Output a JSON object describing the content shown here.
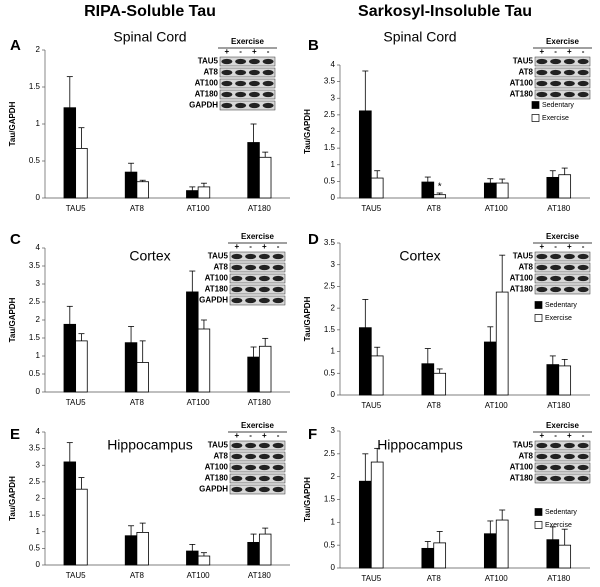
{
  "columns": [
    "RIPA-Soluble Tau",
    "Sarkosyl-Insoluble Tau"
  ],
  "chart_data": [
    {
      "type": "bar",
      "panel": "A",
      "title": "Spinal Cord",
      "ylabel": "Tau/GAPDH",
      "categories": [
        "TAU5",
        "AT8",
        "AT100",
        "AT180"
      ],
      "series": [
        {
          "color": "#000000",
          "values": [
            1.22,
            0.35,
            0.1,
            0.75
          ],
          "errors": [
            0.42,
            0.12,
            0.05,
            0.25
          ]
        },
        {
          "color": "#ffffff",
          "values": [
            0.67,
            0.22,
            0.15,
            0.55
          ],
          "errors": [
            0.28,
            0.02,
            0.05,
            0.07
          ]
        }
      ],
      "ylim": [
        0,
        2
      ],
      "yticks": [
        0,
        0.5,
        1,
        1.5,
        2
      ],
      "inset": {
        "header": "Exercise",
        "lanes": [
          "+",
          "-",
          "+",
          "-"
        ],
        "rows": [
          "TAU5",
          "AT8",
          "AT100",
          "AT180",
          "GAPDH"
        ]
      }
    },
    {
      "type": "bar",
      "panel": "B",
      "title": "Spinal Cord",
      "ylabel": "Tau/GAPDH",
      "categories": [
        "TAU5",
        "AT8",
        "AT100",
        "AT180"
      ],
      "series": [
        {
          "name": "Sedentary",
          "color": "#000000",
          "values": [
            2.62,
            0.48,
            0.45,
            0.62
          ],
          "errors": [
            1.2,
            0.15,
            0.13,
            0.2
          ]
        },
        {
          "name": "Exercise",
          "color": "#ffffff",
          "values": [
            0.6,
            0.1,
            0.45,
            0.7
          ],
          "errors": [
            0.22,
            0.05,
            0.12,
            0.2
          ]
        }
      ],
      "ylim": [
        0,
        4
      ],
      "yticks": [
        0,
        0.5,
        1,
        1.5,
        2,
        2.5,
        3,
        3.5,
        4
      ],
      "annotation": "*",
      "inset": {
        "header": "Exercise",
        "lanes": [
          "+",
          "-",
          "+",
          "-"
        ],
        "rows": [
          "TAU5",
          "AT8",
          "AT100",
          "AT180"
        ]
      }
    },
    {
      "type": "bar",
      "panel": "C",
      "title": "Cortex",
      "ylabel": "Tau/GAPDH",
      "categories": [
        "TAU5",
        "AT8",
        "AT100",
        "AT180"
      ],
      "series": [
        {
          "color": "#000000",
          "values": [
            1.88,
            1.37,
            2.78,
            0.97
          ],
          "errors": [
            0.5,
            0.45,
            0.58,
            0.28
          ]
        },
        {
          "color": "#ffffff",
          "values": [
            1.42,
            0.82,
            1.75,
            1.27
          ],
          "errors": [
            0.2,
            0.6,
            0.25,
            0.22
          ]
        }
      ],
      "ylim": [
        0,
        4
      ],
      "yticks": [
        0,
        0.5,
        1,
        1.5,
        2,
        2.5,
        3,
        3.5,
        4
      ],
      "inset": {
        "header": "Exercise",
        "lanes": [
          "+",
          "-",
          "+",
          "-"
        ],
        "rows": [
          "TAU5",
          "AT8",
          "AT100",
          "AT180",
          "GAPDH"
        ]
      }
    },
    {
      "type": "bar",
      "panel": "D",
      "title": "Cortex",
      "ylabel": "Tau/GAPDH",
      "categories": [
        "TAU5",
        "AT8",
        "AT100",
        "AT180"
      ],
      "series": [
        {
          "name": "Sedentary",
          "color": "#000000",
          "values": [
            1.55,
            0.72,
            1.22,
            0.7
          ],
          "errors": [
            0.65,
            0.35,
            0.35,
            0.2
          ]
        },
        {
          "name": "Exercise",
          "color": "#ffffff",
          "values": [
            0.9,
            0.5,
            2.37,
            0.67
          ],
          "errors": [
            0.2,
            0.1,
            0.85,
            0.15
          ]
        }
      ],
      "ylim": [
        0,
        3.5
      ],
      "yticks": [
        0,
        0.5,
        1,
        1.5,
        2,
        2.5,
        3,
        3.5
      ],
      "inset": {
        "header": "Exercise",
        "lanes": [
          "+",
          "-",
          "+",
          "-"
        ],
        "rows": [
          "TAU5",
          "AT8",
          "AT100",
          "AT180"
        ]
      }
    },
    {
      "type": "bar",
      "panel": "E",
      "title": "Hippocampus",
      "ylabel": "Tau/GAPDH",
      "categories": [
        "TAU5",
        "AT8",
        "AT100",
        "AT180"
      ],
      "series": [
        {
          "color": "#000000",
          "values": [
            3.1,
            0.88,
            0.42,
            0.68
          ],
          "errors": [
            0.58,
            0.3,
            0.2,
            0.25
          ]
        },
        {
          "color": "#ffffff",
          "values": [
            2.28,
            0.98,
            0.27,
            0.93
          ],
          "errors": [
            0.35,
            0.28,
            0.1,
            0.18
          ]
        }
      ],
      "ylim": [
        0,
        4
      ],
      "yticks": [
        0,
        0.5,
        1,
        1.5,
        2,
        2.5,
        3,
        3.5,
        4
      ],
      "inset": {
        "header": "Exercise",
        "lanes": [
          "+",
          "-",
          "+",
          "-"
        ],
        "rows": [
          "TAU5",
          "AT8",
          "AT100",
          "AT180",
          "GAPDH"
        ]
      }
    },
    {
      "type": "bar",
      "panel": "F",
      "title": "Hippocampus",
      "ylabel": "Tau/GAPDH",
      "categories": [
        "TAU5",
        "AT8",
        "AT100",
        "AT180"
      ],
      "series": [
        {
          "name": "Sedentary",
          "color": "#000000",
          "values": [
            1.9,
            0.43,
            0.75,
            0.62
          ],
          "errors": [
            0.6,
            0.15,
            0.28,
            0.28
          ]
        },
        {
          "name": "Exercise",
          "color": "#ffffff",
          "values": [
            2.32,
            0.55,
            1.05,
            0.5
          ],
          "errors": [
            0.3,
            0.25,
            0.22,
            0.35
          ]
        }
      ],
      "ylim": [
        0,
        3
      ],
      "yticks": [
        0,
        0.5,
        1,
        1.5,
        2,
        2.5,
        3
      ],
      "inset": {
        "header": "Exercise",
        "lanes": [
          "+",
          "-",
          "+",
          "-"
        ],
        "rows": [
          "TAU5",
          "AT8",
          "AT100",
          "AT180"
        ]
      }
    }
  ]
}
